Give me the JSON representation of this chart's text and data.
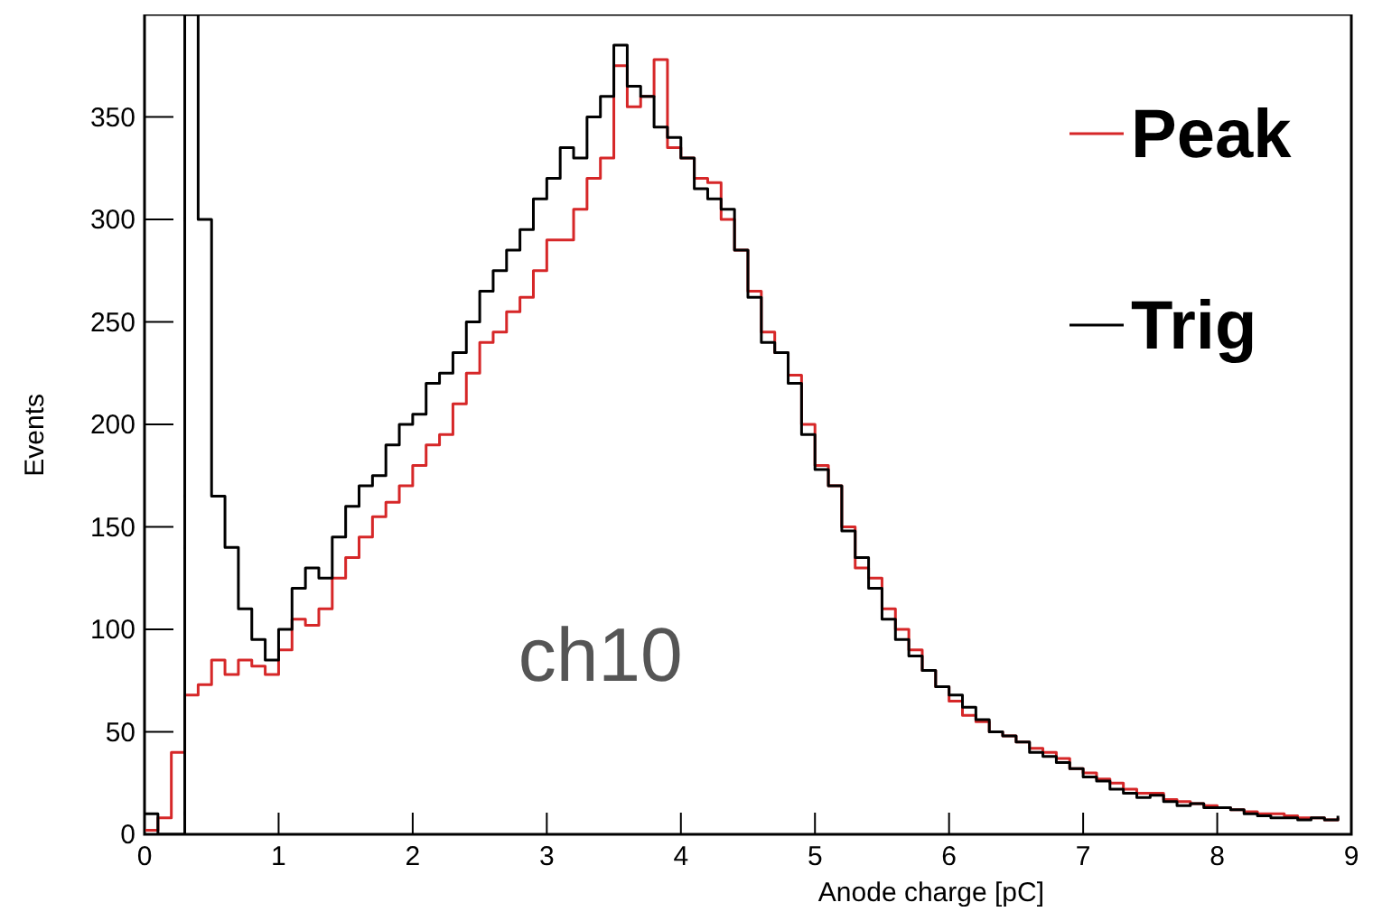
{
  "chart_data": {
    "type": "step",
    "xlabel": "Anode charge [pC]",
    "ylabel": "Events",
    "annotations": [
      "ch10"
    ],
    "xlim": [
      0,
      9
    ],
    "ylim": [
      0,
      400
    ],
    "xticks": [
      0,
      1,
      2,
      3,
      4,
      5,
      6,
      7,
      8,
      9
    ],
    "yticks": [
      0,
      50,
      100,
      150,
      200,
      250,
      300,
      350
    ],
    "legend": "top right",
    "x": [
      0,
      0.1,
      0.2,
      0.3,
      0.4,
      0.5,
      0.6,
      0.7,
      0.8,
      0.9,
      1,
      1.1,
      1.2,
      1.3,
      1.4,
      1.5,
      1.6,
      1.7,
      1.8,
      1.9,
      2,
      2.1,
      2.2,
      2.3,
      2.4,
      2.5,
      2.6,
      2.7,
      2.8,
      2.9,
      3,
      3.1,
      3.2,
      3.3,
      3.4,
      3.5,
      3.6,
      3.7,
      3.8,
      3.9,
      4,
      4.1,
      4.2,
      4.3,
      4.4,
      4.5,
      4.6,
      4.7,
      4.8,
      4.9,
      5,
      5.1,
      5.2,
      5.3,
      5.4,
      5.5,
      5.6,
      5.7,
      5.8,
      5.9,
      6,
      6.1,
      6.2,
      6.3,
      6.4,
      6.5,
      6.6,
      6.7,
      6.8,
      6.9,
      7,
      7.1,
      7.2,
      7.3,
      7.4,
      7.5,
      7.6,
      7.7,
      7.8,
      7.9,
      8,
      8.1,
      8.2,
      8.3,
      8.4,
      8.5,
      8.6,
      8.7,
      8.8,
      8.9
    ],
    "series": [
      {
        "name": "Peak",
        "color": "#d62728",
        "values": [
          2,
          8,
          40,
          68,
          73,
          85,
          78,
          85,
          82,
          78,
          90,
          105,
          102,
          110,
          125,
          135,
          145,
          155,
          162,
          170,
          180,
          190,
          195,
          210,
          225,
          240,
          245,
          255,
          262,
          275,
          290,
          290,
          305,
          320,
          330,
          375,
          355,
          360,
          378,
          335,
          330,
          320,
          318,
          300,
          285,
          265,
          245,
          235,
          224,
          200,
          180,
          170,
          150,
          130,
          125,
          110,
          100,
          90,
          80,
          72,
          65,
          58,
          55,
          50,
          48,
          45,
          42,
          40,
          37,
          32,
          30,
          27,
          25,
          22,
          20,
          20,
          17,
          16,
          15,
          14,
          13,
          12,
          11,
          10,
          10,
          9,
          8,
          8,
          7,
          8
        ]
      },
      {
        "name": "Trig",
        "color": "#000000",
        "values": [
          10,
          0,
          0,
          400,
          300,
          165,
          140,
          110,
          95,
          85,
          100,
          120,
          130,
          125,
          145,
          160,
          170,
          175,
          190,
          200,
          205,
          220,
          225,
          235,
          250,
          265,
          275,
          285,
          295,
          310,
          320,
          335,
          330,
          350,
          360,
          385,
          365,
          360,
          345,
          340,
          330,
          315,
          310,
          305,
          285,
          262,
          240,
          235,
          220,
          195,
          178,
          170,
          148,
          135,
          120,
          105,
          95,
          87,
          80,
          72,
          68,
          62,
          56,
          50,
          48,
          45,
          40,
          38,
          35,
          32,
          28,
          26,
          22,
          20,
          18,
          19,
          16,
          14,
          15,
          13,
          13,
          12,
          10,
          9,
          8,
          8,
          7,
          8,
          7,
          9
        ]
      }
    ]
  }
}
